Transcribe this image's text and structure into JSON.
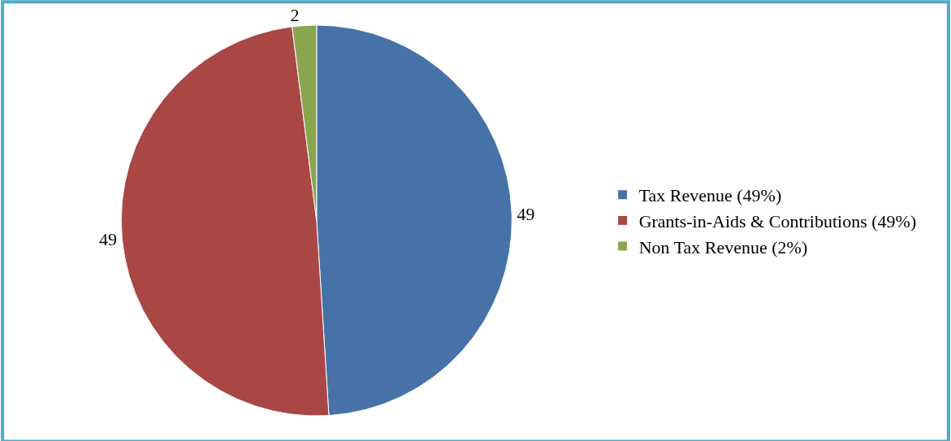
{
  "chart_data": {
    "type": "pie",
    "categories": [
      "Tax Revenue (49%)",
      "Grants-in-Aids & Contributions (49%)",
      "Non Tax Revenue (2%)"
    ],
    "values": [
      49,
      49,
      2
    ],
    "colors": [
      "#4672a8",
      "#a84744",
      "#89a54e"
    ],
    "data_labels": true,
    "legend": "right"
  }
}
